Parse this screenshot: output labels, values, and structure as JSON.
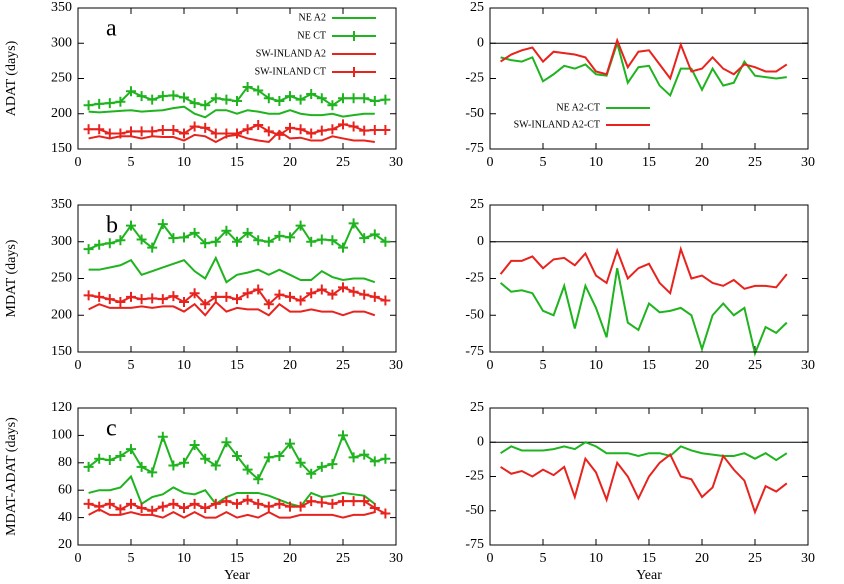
{
  "chart_data": [
    {
      "type": "line",
      "panel_label": "a",
      "ylabel": "ADAT (days)",
      "x": [
        1,
        2,
        3,
        4,
        5,
        6,
        7,
        8,
        9,
        10,
        11,
        12,
        13,
        14,
        15,
        16,
        17,
        18,
        19,
        20,
        21,
        22,
        23,
        24,
        25,
        26,
        27,
        28,
        29
      ],
      "xlim": [
        0,
        30
      ],
      "xticks": [
        0,
        5,
        10,
        15,
        20,
        25,
        30
      ],
      "ylim": [
        150,
        350
      ],
      "yticks": [
        150,
        200,
        250,
        300,
        350
      ],
      "legend": "top-right",
      "series": [
        {
          "name": "NE A2",
          "color": "#1fb41f",
          "marker": "none",
          "values": [
            203,
            202,
            203,
            204,
            205,
            203,
            204,
            205,
            208,
            210,
            200,
            195,
            205,
            205,
            200,
            205,
            203,
            200,
            200,
            205,
            200,
            198,
            198,
            200,
            196,
            198,
            200,
            200,
            null
          ]
        },
        {
          "name": "NE CT",
          "color": "#1fb41f",
          "marker": "plus",
          "values": [
            212,
            214,
            215,
            217,
            232,
            225,
            220,
            225,
            226,
            223,
            215,
            212,
            222,
            220,
            218,
            238,
            233,
            222,
            218,
            225,
            220,
            228,
            222,
            212,
            222,
            222,
            222,
            218,
            220
          ]
        },
        {
          "name": "SW-INLAND A2",
          "color": "#e8231e",
          "marker": "none",
          "values": [
            165,
            168,
            165,
            168,
            168,
            165,
            168,
            167,
            167,
            162,
            170,
            168,
            160,
            168,
            170,
            165,
            162,
            160,
            175,
            165,
            166,
            162,
            162,
            168,
            165,
            162,
            162,
            160,
            null
          ]
        },
        {
          "name": "SW-INLAND CT",
          "color": "#e8231e",
          "marker": "plus",
          "values": [
            178,
            178,
            172,
            172,
            175,
            175,
            175,
            177,
            177,
            172,
            182,
            180,
            172,
            172,
            172,
            178,
            184,
            175,
            170,
            180,
            178,
            172,
            176,
            178,
            185,
            182,
            176,
            177,
            177
          ]
        }
      ]
    },
    {
      "type": "line",
      "x": [
        1,
        2,
        3,
        4,
        5,
        6,
        7,
        8,
        9,
        10,
        11,
        12,
        13,
        14,
        15,
        16,
        17,
        18,
        19,
        20,
        21,
        22,
        23,
        24,
        25,
        26,
        27,
        28
      ],
      "xlim": [
        0,
        30
      ],
      "xticks": [
        0,
        5,
        10,
        15,
        20,
        25,
        30
      ],
      "ylim": [
        -75,
        25
      ],
      "yticks": [
        -75,
        -50,
        -25,
        0,
        25
      ],
      "hline": 0,
      "legend": "bottom-center",
      "series": [
        {
          "name": "NE A2-CT",
          "color": "#1fb41f",
          "marker": "none",
          "values": [
            -10,
            -12,
            -13,
            -10,
            -27,
            -22,
            -16,
            -18,
            -15,
            -22,
            -23,
            0,
            -28,
            -17,
            -16,
            -30,
            -37,
            -18,
            -18,
            -33,
            -18,
            -30,
            -28,
            -13,
            -23,
            -24,
            -25,
            -24
          ]
        },
        {
          "name": "SW-INLAND A2-CT",
          "color": "#e8231e",
          "marker": "none",
          "values": [
            -13,
            -8,
            -5,
            -3,
            -13,
            -6,
            -7,
            -8,
            -10,
            -20,
            -22,
            2,
            -17,
            -6,
            -5,
            -15,
            -25,
            -1,
            -20,
            -18,
            -10,
            -18,
            -22,
            -15,
            -17,
            -20,
            -20,
            -15
          ]
        }
      ]
    },
    {
      "type": "line",
      "panel_label": "b",
      "ylabel": "MDAT (days)",
      "x": [
        1,
        2,
        3,
        4,
        5,
        6,
        7,
        8,
        9,
        10,
        11,
        12,
        13,
        14,
        15,
        16,
        17,
        18,
        19,
        20,
        21,
        22,
        23,
        24,
        25,
        26,
        27,
        28,
        29
      ],
      "xlim": [
        0,
        30
      ],
      "xticks": [
        0,
        5,
        10,
        15,
        20,
        25,
        30
      ],
      "ylim": [
        150,
        350
      ],
      "yticks": [
        150,
        200,
        250,
        300,
        350
      ],
      "series": [
        {
          "color": "#1fb41f",
          "marker": "none",
          "values": [
            262,
            262,
            265,
            268,
            275,
            255,
            260,
            265,
            270,
            275,
            260,
            250,
            278,
            245,
            255,
            258,
            262,
            255,
            262,
            255,
            248,
            248,
            260,
            252,
            248,
            250,
            250,
            245,
            null
          ]
        },
        {
          "color": "#1fb41f",
          "marker": "plus",
          "values": [
            290,
            296,
            298,
            302,
            322,
            303,
            292,
            324,
            305,
            306,
            312,
            298,
            300,
            315,
            300,
            312,
            302,
            300,
            308,
            306,
            322,
            300,
            303,
            302,
            292,
            325,
            305,
            310,
            300
          ]
        },
        {
          "color": "#e8231e",
          "marker": "none",
          "values": [
            208,
            215,
            210,
            210,
            210,
            212,
            210,
            212,
            212,
            205,
            215,
            200,
            218,
            205,
            210,
            208,
            208,
            200,
            215,
            205,
            205,
            208,
            205,
            205,
            200,
            205,
            205,
            200,
            null
          ]
        },
        {
          "color": "#e8231e",
          "marker": "plus",
          "values": [
            227,
            225,
            222,
            218,
            225,
            222,
            223,
            222,
            226,
            218,
            230,
            215,
            225,
            225,
            222,
            230,
            235,
            215,
            228,
            225,
            220,
            230,
            235,
            228,
            238,
            232,
            228,
            225,
            220
          ]
        }
      ]
    },
    {
      "type": "line",
      "x": [
        1,
        2,
        3,
        4,
        5,
        6,
        7,
        8,
        9,
        10,
        11,
        12,
        13,
        14,
        15,
        16,
        17,
        18,
        19,
        20,
        21,
        22,
        23,
        24,
        25,
        26,
        27,
        28
      ],
      "xlim": [
        0,
        30
      ],
      "xticks": [
        0,
        5,
        10,
        15,
        20,
        25,
        30
      ],
      "ylim": [
        -75,
        25
      ],
      "yticks": [
        -75,
        -50,
        -25,
        0,
        25
      ],
      "hline": 0,
      "series": [
        {
          "color": "#1fb41f",
          "marker": "none",
          "values": [
            -28,
            -34,
            -33,
            -35,
            -47,
            -50,
            -30,
            -59,
            -30,
            -45,
            -65,
            -18,
            -55,
            -60,
            -42,
            -48,
            -47,
            -45,
            -50,
            -73,
            -50,
            -42,
            -50,
            -45,
            -76,
            -58,
            -62,
            -55
          ]
        },
        {
          "color": "#e8231e",
          "marker": "none",
          "values": [
            -22,
            -13,
            -13,
            -10,
            -18,
            -12,
            -11,
            -16,
            -8,
            -23,
            -28,
            -6,
            -25,
            -18,
            -15,
            -28,
            -35,
            -5,
            -25,
            -23,
            -28,
            -30,
            -26,
            -32,
            -30,
            -30,
            -31,
            -22
          ]
        }
      ]
    },
    {
      "type": "line",
      "panel_label": "c",
      "ylabel": "MDAT-ADAT (days)",
      "xlabel": "Year",
      "x": [
        1,
        2,
        3,
        4,
        5,
        6,
        7,
        8,
        9,
        10,
        11,
        12,
        13,
        14,
        15,
        16,
        17,
        18,
        19,
        20,
        21,
        22,
        23,
        24,
        25,
        26,
        27,
        28,
        29
      ],
      "xlim": [
        0,
        30
      ],
      "xticks": [
        0,
        5,
        10,
        15,
        20,
        25,
        30
      ],
      "ylim": [
        20,
        120
      ],
      "yticks": [
        20,
        40,
        60,
        80,
        100,
        120
      ],
      "series": [
        {
          "color": "#1fb41f",
          "marker": "none",
          "values": [
            58,
            60,
            60,
            62,
            70,
            50,
            55,
            57,
            62,
            58,
            57,
            60,
            50,
            55,
            58,
            58,
            58,
            56,
            53,
            50,
            48,
            58,
            55,
            56,
            58,
            57,
            56,
            50,
            null
          ]
        },
        {
          "color": "#1fb41f",
          "marker": "plus",
          "values": [
            77,
            83,
            82,
            85,
            90,
            77,
            73,
            99,
            78,
            80,
            93,
            83,
            78,
            95,
            85,
            75,
            68,
            84,
            85,
            94,
            80,
            72,
            77,
            79,
            100,
            84,
            86,
            81,
            83
          ]
        },
        {
          "color": "#e8231e",
          "marker": "none",
          "values": [
            42,
            46,
            42,
            42,
            44,
            42,
            42,
            40,
            44,
            40,
            44,
            40,
            40,
            44,
            40,
            42,
            40,
            44,
            40,
            40,
            42,
            42,
            42,
            42,
            40,
            42,
            42,
            44,
            null
          ]
        },
        {
          "color": "#e8231e",
          "marker": "plus",
          "values": [
            50,
            48,
            50,
            46,
            50,
            47,
            45,
            48,
            50,
            47,
            50,
            47,
            50,
            52,
            50,
            53,
            50,
            48,
            50,
            48,
            48,
            52,
            51,
            50,
            52,
            52,
            52,
            47,
            43
          ]
        }
      ]
    },
    {
      "type": "line",
      "xlabel": "Year",
      "x": [
        1,
        2,
        3,
        4,
        5,
        6,
        7,
        8,
        9,
        10,
        11,
        12,
        13,
        14,
        15,
        16,
        17,
        18,
        19,
        20,
        21,
        22,
        23,
        24,
        25,
        26,
        27,
        28
      ],
      "xlim": [
        0,
        30
      ],
      "xticks": [
        0,
        5,
        10,
        15,
        20,
        25,
        30
      ],
      "ylim": [
        -75,
        25
      ],
      "yticks": [
        -75,
        -50,
        -25,
        0,
        25
      ],
      "hline": 0,
      "series": [
        {
          "color": "#1fb41f",
          "marker": "none",
          "values": [
            -8,
            -3,
            -6,
            -6,
            -6,
            -5,
            -3,
            -5,
            0,
            -3,
            -8,
            -8,
            -8,
            -10,
            -8,
            -8,
            -10,
            -3,
            -6,
            -8,
            -9,
            -10,
            -10,
            -8,
            -12,
            -8,
            -13,
            -8
          ]
        },
        {
          "color": "#e8231e",
          "marker": "none",
          "values": [
            -18,
            -23,
            -21,
            -25,
            -20,
            -24,
            -18,
            -40,
            -12,
            -22,
            -42,
            -15,
            -25,
            -41,
            -25,
            -15,
            -9,
            -25,
            -27,
            -40,
            -33,
            -10,
            -20,
            -28,
            -51,
            -32,
            -36,
            -30
          ]
        }
      ]
    }
  ]
}
